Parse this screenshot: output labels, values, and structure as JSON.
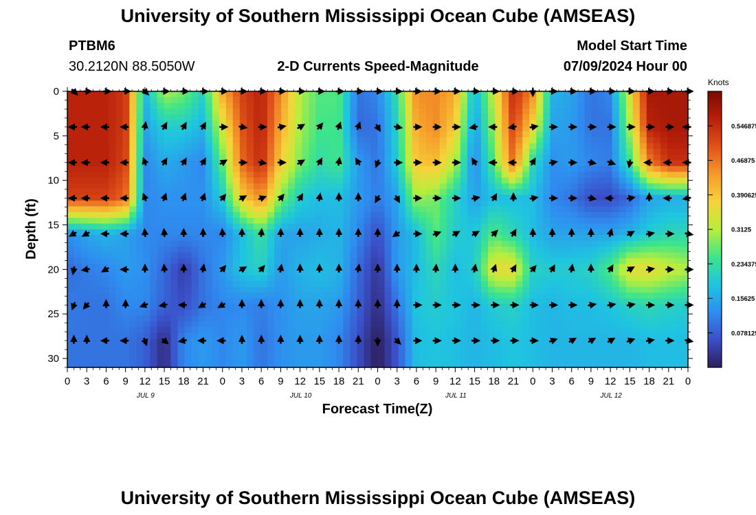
{
  "header": {
    "title": "University of Southern Mississippi Ocean Cube (AMSEAS)",
    "station_id": "PTBM6",
    "station_coords": "30.2120N  88.5050W",
    "chart_subtitle": "2-D Currents Speed-Magnitude",
    "model_start_label": "Model Start Time",
    "model_start_value": "07/09/2024 Hour 00"
  },
  "footer": {
    "title_repeat": "University of Southern Mississippi Ocean Cube (AMSEAS)"
  },
  "colors": {
    "background": "#ffffff",
    "arrow": "#000000",
    "cmap": [
      "#2d1e5a",
      "#3b4fc8",
      "#2f8df0",
      "#1fc4e0",
      "#3ee58a",
      "#b9ee3c",
      "#f6d33a",
      "#f59a2a",
      "#e0521a",
      "#b8200a",
      "#7a0a00"
    ]
  },
  "chart_data": {
    "type": "heatmap",
    "title": "2-D Currents Speed-Magnitude",
    "xlabel": "Forecast Time(Z)",
    "ylabel": "Depth (ft)",
    "x_ticks": [
      0,
      3,
      6,
      9,
      12,
      15,
      18,
      21,
      24,
      27,
      30,
      33,
      36,
      39,
      42,
      45,
      48,
      51,
      54,
      57,
      60,
      63,
      66,
      69,
      72,
      75,
      78,
      81,
      84,
      87,
      90,
      93,
      96
    ],
    "x_tick_labels": [
      "0",
      "3",
      "6",
      "9",
      "12",
      "15",
      "18",
      "21",
      "0",
      "3",
      "6",
      "9",
      "12",
      "15",
      "18",
      "21",
      "0",
      "3",
      "6",
      "9",
      "12",
      "15",
      "18",
      "21",
      "0",
      "3",
      "6",
      "9",
      "12",
      "15",
      "18",
      "21",
      "0"
    ],
    "x_range": [
      0,
      96
    ],
    "day_labels": [
      {
        "hour": 12,
        "label": "JUL 9"
      },
      {
        "hour": 36,
        "label": "JUL 10"
      },
      {
        "hour": 60,
        "label": "JUL 11"
      },
      {
        "hour": 84,
        "label": "JUL 12"
      }
    ],
    "y_ticks": [
      0,
      5,
      10,
      15,
      20,
      25,
      30
    ],
    "y_tick_labels": [
      "0",
      "5",
      "10",
      "15",
      "20",
      "25",
      "30"
    ],
    "y_range": [
      0,
      31
    ],
    "depth_levels_ft": [
      0,
      4,
      8,
      12,
      16,
      20,
      24,
      28
    ],
    "colorbar": {
      "title": "Knots",
      "range": [
        0,
        0.625
      ],
      "tick_values": [
        0.078125,
        0.15625,
        0.234375,
        0.3125,
        0.390625,
        0.46875,
        0.546875
      ],
      "tick_labels": [
        "0.078125",
        "0.15625",
        "0.234375",
        "0.3125",
        "0.390625",
        "0.46875",
        "0.546875"
      ]
    },
    "speed_hours": [
      0,
      3,
      6,
      9,
      12,
      15,
      18,
      21,
      24,
      27,
      30,
      33,
      36,
      39,
      42,
      45,
      48,
      51,
      54,
      57,
      60,
      63,
      66,
      69,
      72,
      75,
      78,
      81,
      84,
      87,
      90,
      93,
      96
    ],
    "speed_knots": [
      [
        0.56,
        0.56,
        0.56,
        0.53,
        0.17,
        0.31,
        0.28,
        0.21,
        0.42,
        0.52,
        0.56,
        0.45,
        0.31,
        0.26,
        0.26,
        0.1,
        0.12,
        0.23,
        0.45,
        0.45,
        0.42,
        0.17,
        0.33,
        0.55,
        0.45,
        0.17,
        0.15,
        0.1,
        0.12,
        0.35,
        0.58,
        0.58,
        0.58
      ],
      [
        0.56,
        0.56,
        0.56,
        0.53,
        0.15,
        0.2,
        0.2,
        0.17,
        0.34,
        0.5,
        0.56,
        0.42,
        0.3,
        0.25,
        0.25,
        0.09,
        0.1,
        0.21,
        0.42,
        0.45,
        0.38,
        0.14,
        0.3,
        0.52,
        0.37,
        0.15,
        0.14,
        0.1,
        0.1,
        0.31,
        0.56,
        0.58,
        0.58
      ],
      [
        0.56,
        0.56,
        0.56,
        0.52,
        0.12,
        0.16,
        0.14,
        0.12,
        0.27,
        0.48,
        0.55,
        0.38,
        0.28,
        0.23,
        0.25,
        0.14,
        0.1,
        0.2,
        0.39,
        0.4,
        0.31,
        0.12,
        0.26,
        0.48,
        0.22,
        0.13,
        0.14,
        0.12,
        0.11,
        0.24,
        0.46,
        0.54,
        0.54
      ],
      [
        0.52,
        0.52,
        0.52,
        0.48,
        0.12,
        0.13,
        0.13,
        0.13,
        0.2,
        0.38,
        0.45,
        0.28,
        0.2,
        0.18,
        0.18,
        0.14,
        0.11,
        0.15,
        0.3,
        0.28,
        0.21,
        0.15,
        0.18,
        0.18,
        0.18,
        0.12,
        0.1,
        0.06,
        0.06,
        0.09,
        0.15,
        0.16,
        0.16
      ],
      [
        0.13,
        0.15,
        0.17,
        0.15,
        0.12,
        0.12,
        0.12,
        0.12,
        0.12,
        0.18,
        0.24,
        0.15,
        0.15,
        0.16,
        0.17,
        0.12,
        0.06,
        0.14,
        0.18,
        0.26,
        0.2,
        0.19,
        0.26,
        0.22,
        0.18,
        0.15,
        0.15,
        0.15,
        0.15,
        0.17,
        0.2,
        0.22,
        0.22
      ],
      [
        0.09,
        0.11,
        0.12,
        0.14,
        0.13,
        0.09,
        0.04,
        0.1,
        0.14,
        0.19,
        0.21,
        0.14,
        0.17,
        0.18,
        0.17,
        0.09,
        0.03,
        0.14,
        0.18,
        0.22,
        0.18,
        0.2,
        0.36,
        0.36,
        0.21,
        0.2,
        0.2,
        0.21,
        0.26,
        0.36,
        0.36,
        0.33,
        0.31
      ],
      [
        0.11,
        0.1,
        0.1,
        0.12,
        0.12,
        0.08,
        0.06,
        0.1,
        0.12,
        0.12,
        0.11,
        0.13,
        0.15,
        0.15,
        0.14,
        0.08,
        0.02,
        0.1,
        0.19,
        0.2,
        0.19,
        0.17,
        0.2,
        0.21,
        0.18,
        0.17,
        0.18,
        0.18,
        0.19,
        0.21,
        0.22,
        0.21,
        0.2
      ],
      [
        0.1,
        0.1,
        0.1,
        0.1,
        0.08,
        0.02,
        0.12,
        0.14,
        0.12,
        0.14,
        0.1,
        0.13,
        0.14,
        0.14,
        0.12,
        0.06,
        0.0,
        0.07,
        0.18,
        0.19,
        0.18,
        0.17,
        0.18,
        0.19,
        0.18,
        0.17,
        0.17,
        0.17,
        0.17,
        0.17,
        0.18,
        0.18,
        0.18
      ]
    ],
    "vector_hours": [
      1,
      3,
      6,
      9,
      12,
      15,
      18,
      21,
      24,
      27,
      30,
      33,
      36,
      39,
      42,
      45,
      48,
      51,
      54,
      57,
      60,
      63,
      66,
      69,
      72,
      75,
      78,
      81,
      84,
      87,
      90,
      93,
      96
    ],
    "vector_direction_deg": [
      [
        135,
        90,
        90,
        90,
        135,
        90,
        90,
        90,
        90,
        90,
        90,
        90,
        90,
        90,
        90,
        90,
        90,
        90,
        90,
        90,
        90,
        90,
        90,
        90,
        180,
        90,
        90,
        90,
        90,
        90,
        90,
        90,
        90
      ],
      [
        270,
        270,
        270,
        270,
        10,
        30,
        30,
        30,
        90,
        100,
        90,
        80,
        60,
        40,
        20,
        20,
        150,
        100,
        90,
        90,
        90,
        260,
        270,
        260,
        80,
        90,
        90,
        90,
        90,
        90,
        90,
        90,
        270
      ],
      [
        270,
        270,
        270,
        270,
        340,
        30,
        30,
        30,
        60,
        90,
        100,
        90,
        60,
        30,
        10,
        330,
        200,
        90,
        90,
        90,
        90,
        330,
        270,
        270,
        30,
        80,
        90,
        100,
        110,
        190,
        270,
        270,
        270
      ],
      [
        270,
        270,
        270,
        270,
        340,
        20,
        20,
        20,
        40,
        60,
        70,
        40,
        30,
        10,
        0,
        0,
        210,
        150,
        90,
        90,
        90,
        80,
        30,
        0,
        80,
        90,
        90,
        100,
        270,
        80,
        0,
        270,
        260
      ],
      [
        240,
        240,
        270,
        270,
        355,
        355,
        0,
        0,
        355,
        0,
        5,
        0,
        0,
        0,
        0,
        0,
        0,
        235,
        90,
        70,
        60,
        60,
        45,
        30,
        0,
        0,
        0,
        0,
        15,
        60,
        80,
        90,
        100
      ],
      [
        190,
        260,
        240,
        270,
        0,
        355,
        0,
        10,
        40,
        60,
        40,
        10,
        0,
        0,
        0,
        10,
        0,
        0,
        0,
        5,
        0,
        10,
        20,
        30,
        40,
        30,
        10,
        0,
        30,
        60,
        80,
        90,
        90
      ],
      [
        200,
        220,
        0,
        0,
        250,
        260,
        270,
        240,
        240,
        0,
        0,
        0,
        0,
        0,
        0,
        0,
        0,
        0,
        90,
        90,
        90,
        90,
        90,
        90,
        90,
        90,
        90,
        80,
        80,
        80,
        90,
        90,
        90
      ],
      [
        0,
        0,
        270,
        270,
        160,
        130,
        260,
        270,
        270,
        0,
        0,
        0,
        0,
        0,
        0,
        0,
        180,
        135,
        90,
        90,
        90,
        90,
        90,
        90,
        90,
        70,
        60,
        60,
        60,
        70,
        80,
        90,
        100
      ]
    ]
  }
}
